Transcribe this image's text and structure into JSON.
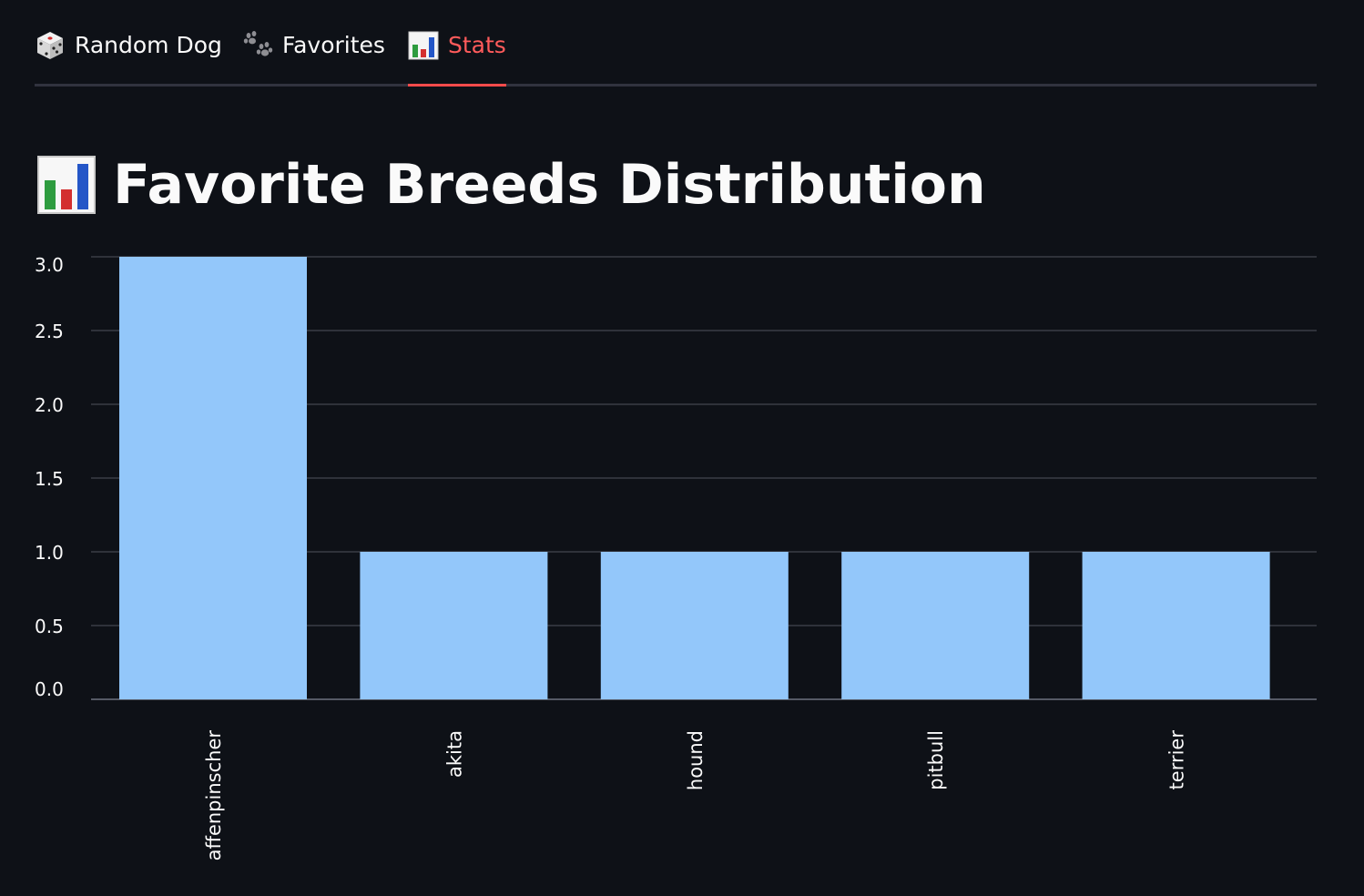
{
  "tabs": [
    {
      "label": "Random Dog",
      "icon": "dice-icon",
      "active": false
    },
    {
      "label": "Favorites",
      "icon": "paw-prints-icon",
      "active": false
    },
    {
      "label": "Stats",
      "icon": "bar-chart-icon",
      "active": true
    }
  ],
  "page": {
    "title": "Favorite Breeds Distribution",
    "title_icon": "bar-chart-icon"
  },
  "colors": {
    "background": "#0e1117",
    "accent": "#ff4b4b",
    "bar": "#93c7fa",
    "grid": "#3a3d47",
    "text": "#fafafa"
  },
  "chart_data": {
    "type": "bar",
    "categories": [
      "affenpinscher",
      "akita",
      "hound",
      "pitbull",
      "terrier"
    ],
    "values": [
      3,
      1,
      1,
      1,
      1
    ],
    "yticks": [
      "0.0",
      "0.5",
      "1.0",
      "1.5",
      "2.0",
      "2.5",
      "3.0"
    ],
    "ylim": [
      0,
      3
    ],
    "grid": true,
    "legend": "none"
  }
}
